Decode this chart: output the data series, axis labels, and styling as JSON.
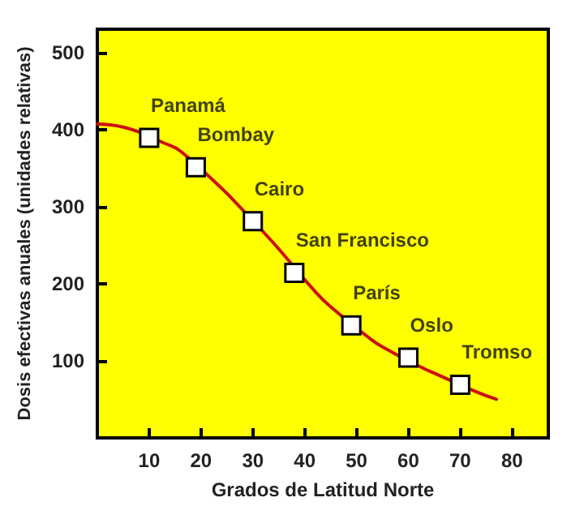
{
  "chart_data": {
    "type": "scatter",
    "xlabel": "Grados de Latitud Norte",
    "ylabel": "Dosis efectivas anuales (unidades relativas)",
    "xlim": [
      0,
      87
    ],
    "xticks": [
      10,
      20,
      30,
      40,
      50,
      60,
      70,
      80
    ],
    "ylim": [
      0,
      530
    ],
    "yticks": [
      100,
      200,
      300,
      400,
      500
    ],
    "grid": false,
    "series": [
      {
        "type": "line",
        "color": "#cc1111",
        "marker": "none",
        "line_style": "solid",
        "x": [
          0,
          5,
          13,
          16,
          23,
          26,
          33,
          35,
          42,
          45,
          52,
          55,
          63,
          65,
          73,
          77
        ],
        "values": [
          407,
          403,
          382,
          372,
          330,
          310,
          260,
          245,
          190,
          170,
          132,
          118,
          90,
          84,
          60,
          50
        ]
      },
      {
        "color": "#ffffff",
        "marker": "square",
        "x": [
          10,
          19,
          30,
          38,
          49,
          60,
          70
        ],
        "values": [
          389,
          351,
          281,
          214,
          146,
          104,
          69
        ]
      }
    ],
    "annotations": [
      {
        "text": "Panamá",
        "x": 10,
        "y": 389
      },
      {
        "text": "Bombay",
        "x": 19,
        "y": 351
      },
      {
        "text": "Cairo",
        "x": 30,
        "y": 281
      },
      {
        "text": "San Francisco",
        "x": 38,
        "y": 214
      },
      {
        "text": "París",
        "x": 49,
        "y": 146
      },
      {
        "text": "Oslo",
        "x": 60,
        "y": 104
      },
      {
        "text": "Tromso",
        "x": 70,
        "y": 69
      }
    ]
  }
}
